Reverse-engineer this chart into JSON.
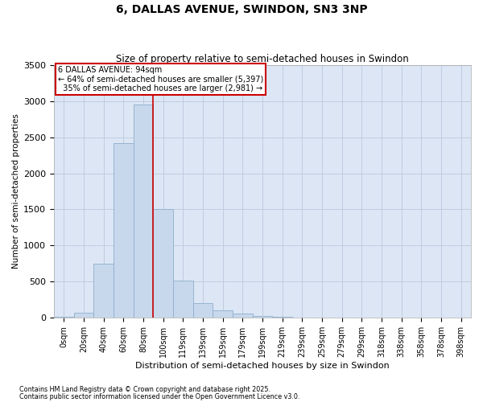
{
  "title": "6, DALLAS AVENUE, SWINDON, SN3 3NP",
  "subtitle": "Size of property relative to semi-detached houses in Swindon",
  "xlabel": "Distribution of semi-detached houses by size in Swindon",
  "ylabel": "Number of semi-detached properties",
  "property_size": 94,
  "property_label": "6 DALLAS AVENUE: 94sqm",
  "pct_smaller": 64,
  "count_smaller": 5397,
  "pct_larger": 35,
  "count_larger": 2981,
  "footer1": "Contains HM Land Registry data © Crown copyright and database right 2025.",
  "footer2": "Contains public sector information licensed under the Open Government Licence v3.0.",
  "categories": [
    "0sqm",
    "20sqm",
    "40sqm",
    "60sqm",
    "80sqm",
    "100sqm",
    "119sqm",
    "139sqm",
    "159sqm",
    "179sqm",
    "199sqm",
    "219sqm",
    "239sqm",
    "259sqm",
    "279sqm",
    "299sqm",
    "318sqm",
    "338sqm",
    "358sqm",
    "378sqm",
    "398sqm"
  ],
  "bar_values": [
    15,
    70,
    750,
    2420,
    2950,
    1510,
    520,
    200,
    100,
    55,
    30,
    15,
    8,
    3,
    1,
    0,
    0,
    0,
    0,
    0,
    0
  ],
  "bar_color": "#c8d8ec",
  "bar_edge_color": "#8eaecb",
  "line_color": "#cc0000",
  "grid_color": "#c0cce0",
  "bg_color": "#dce6f5",
  "ylim": [
    0,
    3500
  ],
  "yticks": [
    0,
    500,
    1000,
    1500,
    2000,
    2500,
    3000,
    3500
  ],
  "red_line_x": 5.0
}
